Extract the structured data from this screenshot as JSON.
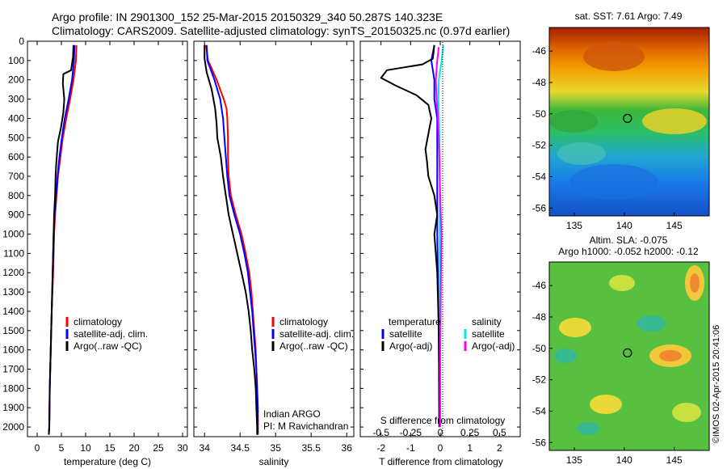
{
  "header": {
    "line1": "Argo profile: IN 2901300_152 25-Mar-2015 20150329_340 50.287S 140.323E",
    "line2": "Climatology: CARS2009. Satellite-adjusted climatology: synTS_20150325.nc (0.97d earlier)"
  },
  "colors": {
    "red": "#ff0000",
    "blue": "#0000ff",
    "black": "#000000",
    "cyan": "#00e5ee",
    "magenta": "#ff00ff"
  },
  "chart_data": [
    {
      "type": "line",
      "id": "temperature",
      "xlabel": "temperature (deg C)",
      "xlim": [
        -2,
        31
      ],
      "ylim": [
        0,
        2050
      ],
      "xticks": [
        "0",
        "5",
        "10",
        "15",
        "20",
        "25",
        "30"
      ],
      "yticks": [
        "0",
        "100",
        "200",
        "300",
        "400",
        "500",
        "600",
        "700",
        "800",
        "900",
        "1000",
        "1100",
        "1200",
        "1300",
        "1400",
        "1500",
        "1600",
        "1700",
        "1800",
        "1900",
        "2000"
      ],
      "legend": {
        "position": "right",
        "entries": [
          "climatology",
          "satellite-adj. clim.",
          "Argo(..raw -QC)"
        ]
      },
      "series": [
        {
          "name": "climatology",
          "color": "red",
          "points": [
            [
              8.1,
              20
            ],
            [
              8.0,
              100
            ],
            [
              7.5,
              200
            ],
            [
              6.8,
              300
            ],
            [
              6.0,
              400
            ],
            [
              5.3,
              500
            ],
            [
              4.8,
              600
            ],
            [
              4.3,
              700
            ],
            [
              4.0,
              800
            ],
            [
              3.7,
              900
            ],
            [
              3.5,
              1000
            ],
            [
              3.3,
              1200
            ],
            [
              3.0,
              1400
            ],
            [
              2.8,
              1600
            ],
            [
              2.6,
              1800
            ],
            [
              2.5,
              2000
            ],
            [
              2.4,
              2040
            ]
          ]
        },
        {
          "name": "satellite-adj. clim.",
          "color": "blue",
          "points": [
            [
              7.7,
              20
            ],
            [
              7.6,
              100
            ],
            [
              7.2,
              200
            ],
            [
              6.5,
              300
            ],
            [
              5.7,
              400
            ],
            [
              5.1,
              500
            ],
            [
              4.6,
              600
            ],
            [
              4.2,
              700
            ],
            [
              3.9,
              800
            ],
            [
              3.6,
              900
            ],
            [
              3.4,
              1000
            ],
            [
              3.2,
              1200
            ],
            [
              3.0,
              1400
            ],
            [
              2.8,
              1600
            ],
            [
              2.6,
              1800
            ],
            [
              2.5,
              2000
            ],
            [
              2.4,
              2040
            ]
          ]
        },
        {
          "name": "Argo(..raw -QC)",
          "color": "black",
          "points": [
            [
              7.5,
              20
            ],
            [
              7.4,
              80
            ],
            [
              7.0,
              150
            ],
            [
              5.4,
              170
            ],
            [
              5.3,
              220
            ],
            [
              5.6,
              300
            ],
            [
              5.4,
              370
            ],
            [
              4.9,
              450
            ],
            [
              4.3,
              520
            ],
            [
              4.1,
              580
            ],
            [
              3.9,
              650
            ],
            [
              3.8,
              700
            ],
            [
              3.7,
              800
            ],
            [
              3.5,
              900
            ],
            [
              3.4,
              1000
            ],
            [
              3.2,
              1200
            ],
            [
              3.0,
              1400
            ],
            [
              2.8,
              1600
            ],
            [
              2.6,
              1800
            ],
            [
              2.5,
              2000
            ],
            [
              2.4,
              2040
            ]
          ]
        }
      ]
    },
    {
      "type": "line",
      "id": "salinity",
      "xlabel": "salinity",
      "xlim": [
        33.85,
        36.1
      ],
      "ylim": [
        0,
        2050
      ],
      "xticks": [
        "34",
        "34.5",
        "35",
        "35.5",
        "36"
      ],
      "legend": {
        "position": "right",
        "entries": [
          "climatology",
          "satellite-adj. clim.",
          "Argo(..raw -QC)"
        ]
      },
      "annotation": [
        "Indian ARGO",
        "PI: M Ravichandran"
      ],
      "series": [
        {
          "name": "climatology",
          "color": "red",
          "points": [
            [
              34.02,
              20
            ],
            [
              34.05,
              100
            ],
            [
              34.17,
              200
            ],
            [
              34.27,
              300
            ],
            [
              34.31,
              350
            ],
            [
              34.32,
              400
            ],
            [
              34.33,
              500
            ],
            [
              34.33,
              600
            ],
            [
              34.34,
              700
            ],
            [
              34.37,
              800
            ],
            [
              34.44,
              900
            ],
            [
              34.52,
              1000
            ],
            [
              34.58,
              1100
            ],
            [
              34.63,
              1200
            ],
            [
              34.66,
              1300
            ],
            [
              34.68,
              1400
            ],
            [
              34.7,
              1500
            ],
            [
              34.72,
              1600
            ],
            [
              34.73,
              1700
            ],
            [
              34.74,
              1800
            ],
            [
              34.75,
              1900
            ],
            [
              34.75,
              2000
            ],
            [
              34.75,
              2040
            ]
          ]
        },
        {
          "name": "satellite-adj. clim.",
          "color": "blue",
          "points": [
            [
              34.03,
              20
            ],
            [
              34.04,
              100
            ],
            [
              34.14,
              200
            ],
            [
              34.22,
              300
            ],
            [
              34.26,
              400
            ],
            [
              34.28,
              500
            ],
            [
              34.3,
              600
            ],
            [
              34.32,
              700
            ],
            [
              34.35,
              800
            ],
            [
              34.42,
              900
            ],
            [
              34.5,
              1000
            ],
            [
              34.56,
              1100
            ],
            [
              34.61,
              1200
            ],
            [
              34.64,
              1300
            ],
            [
              34.67,
              1400
            ],
            [
              34.69,
              1500
            ],
            [
              34.71,
              1600
            ],
            [
              34.73,
              1700
            ],
            [
              34.74,
              1800
            ],
            [
              34.75,
              1900
            ],
            [
              34.75,
              2000
            ],
            [
              34.75,
              2040
            ]
          ]
        },
        {
          "name": "Argo(..raw -QC)",
          "color": "black",
          "points": [
            [
              34.0,
              20
            ],
            [
              34.0,
              90
            ],
            [
              34.03,
              160
            ],
            [
              34.1,
              250
            ],
            [
              34.15,
              350
            ],
            [
              34.17,
              430
            ],
            [
              34.18,
              500
            ],
            [
              34.23,
              600
            ],
            [
              34.26,
              700
            ],
            [
              34.3,
              800
            ],
            [
              34.34,
              900
            ],
            [
              34.4,
              1000
            ],
            [
              34.46,
              1100
            ],
            [
              34.52,
              1200
            ],
            [
              34.58,
              1300
            ],
            [
              34.62,
              1400
            ],
            [
              34.65,
              1500
            ],
            [
              34.67,
              1600
            ],
            [
              34.7,
              1700
            ],
            [
              34.72,
              1800
            ],
            [
              34.73,
              1900
            ],
            [
              34.74,
              2000
            ],
            [
              34.74,
              2040
            ]
          ]
        }
      ]
    },
    {
      "type": "line",
      "id": "difference",
      "xlabel": "T difference from climatology",
      "xlabel2": "S difference from climatology",
      "xlim": [
        -2.7,
        2.7
      ],
      "ylim": [
        0,
        2050
      ],
      "xticks": [
        "-2",
        "-1",
        "0",
        "1",
        "2"
      ],
      "xticks_S": [
        "-0.5",
        "-0.25",
        "0",
        "0.25",
        "0.5"
      ],
      "legend": {
        "position": "lower-middle",
        "temperature_title": "temperature",
        "salinity_title": "salinity",
        "entries": [
          "satellite",
          "Argo(-adj)",
          "satellite",
          "Argo(-adj)"
        ]
      },
      "series": [
        {
          "name": "temperature satellite",
          "color": "blue",
          "points": [
            [
              -0.2,
              20
            ],
            [
              -0.3,
              100
            ],
            [
              -0.2,
              200
            ],
            [
              -0.2,
              300
            ],
            [
              -0.1,
              400
            ],
            [
              -0.1,
              600
            ],
            [
              -0.1,
              1000
            ],
            [
              -0.05,
              1500
            ],
            [
              -0.03,
              2000
            ]
          ]
        },
        {
          "name": "temperature Argo(-adj)",
          "color": "black",
          "points": [
            [
              -0.2,
              20
            ],
            [
              -0.25,
              90
            ],
            [
              -0.6,
              120
            ],
            [
              -1.8,
              150
            ],
            [
              -2.0,
              190
            ],
            [
              -1.5,
              230
            ],
            [
              -0.8,
              280
            ],
            [
              -0.4,
              330
            ],
            [
              -0.3,
              400
            ],
            [
              -0.4,
              480
            ],
            [
              -0.5,
              560
            ],
            [
              -0.45,
              620
            ],
            [
              -0.4,
              700
            ],
            [
              -0.2,
              800
            ],
            [
              -0.1,
              900
            ],
            [
              -0.2,
              1000
            ],
            [
              -0.1,
              1200
            ],
            [
              -0.05,
              1500
            ],
            [
              -0.03,
              2000
            ]
          ]
        },
        {
          "name": "salinity satellite",
          "color": "cyan",
          "points": [
            [
              0.1,
              20
            ],
            [
              0.05,
              100
            ],
            [
              -0.05,
              200
            ],
            [
              -0.06,
              300
            ],
            [
              -0.04,
              400
            ],
            [
              -0.02,
              600
            ],
            [
              -0.02,
              1000
            ],
            [
              0,
              1500
            ],
            [
              0,
              2000
            ]
          ]
        },
        {
          "name": "salinity Argo(-adj)",
          "color": "magenta",
          "points": [
            [
              -0.05,
              30
            ],
            [
              -0.1,
              100
            ],
            [
              -0.15,
              200
            ],
            [
              -0.12,
              300
            ],
            [
              -0.08,
              400
            ],
            [
              -0.05,
              500
            ],
            [
              -0.03,
              600
            ],
            [
              -0.02,
              700
            ],
            [
              0.02,
              900
            ],
            [
              0.04,
              1000
            ],
            [
              0.03,
              1100
            ],
            [
              0.02,
              1300
            ],
            [
              0,
              1600
            ],
            [
              0,
              2000
            ]
          ]
        }
      ]
    },
    {
      "type": "heatmap",
      "id": "sst-map",
      "title": "sat. SST: 7.61  Argo: 7.49",
      "xlim": [
        132.5,
        148.5
      ],
      "ylim": [
        -56.5,
        -44.5
      ],
      "xticks": [
        "135",
        "140",
        "145"
      ],
      "yticks": [
        "-46",
        "-48",
        "-50",
        "-52",
        "-54",
        "-56"
      ],
      "marker": [
        140.323,
        -50.287
      ]
    },
    {
      "type": "heatmap",
      "id": "sla-map",
      "title": "Altim. SLA: -0.075",
      "subtitle": "Argo h1000: -0.052 h2000: -0.12",
      "xlim": [
        132.5,
        148.5
      ],
      "ylim": [
        -56.5,
        -44.5
      ],
      "xticks": [
        "135",
        "140",
        "145"
      ],
      "yticks": [
        "-46",
        "-48",
        "-50",
        "-52",
        "-54",
        "-56"
      ],
      "marker": [
        140.323,
        -50.287
      ]
    }
  ],
  "credit": "©IMOS 02-Apr-2015 20:41:06"
}
